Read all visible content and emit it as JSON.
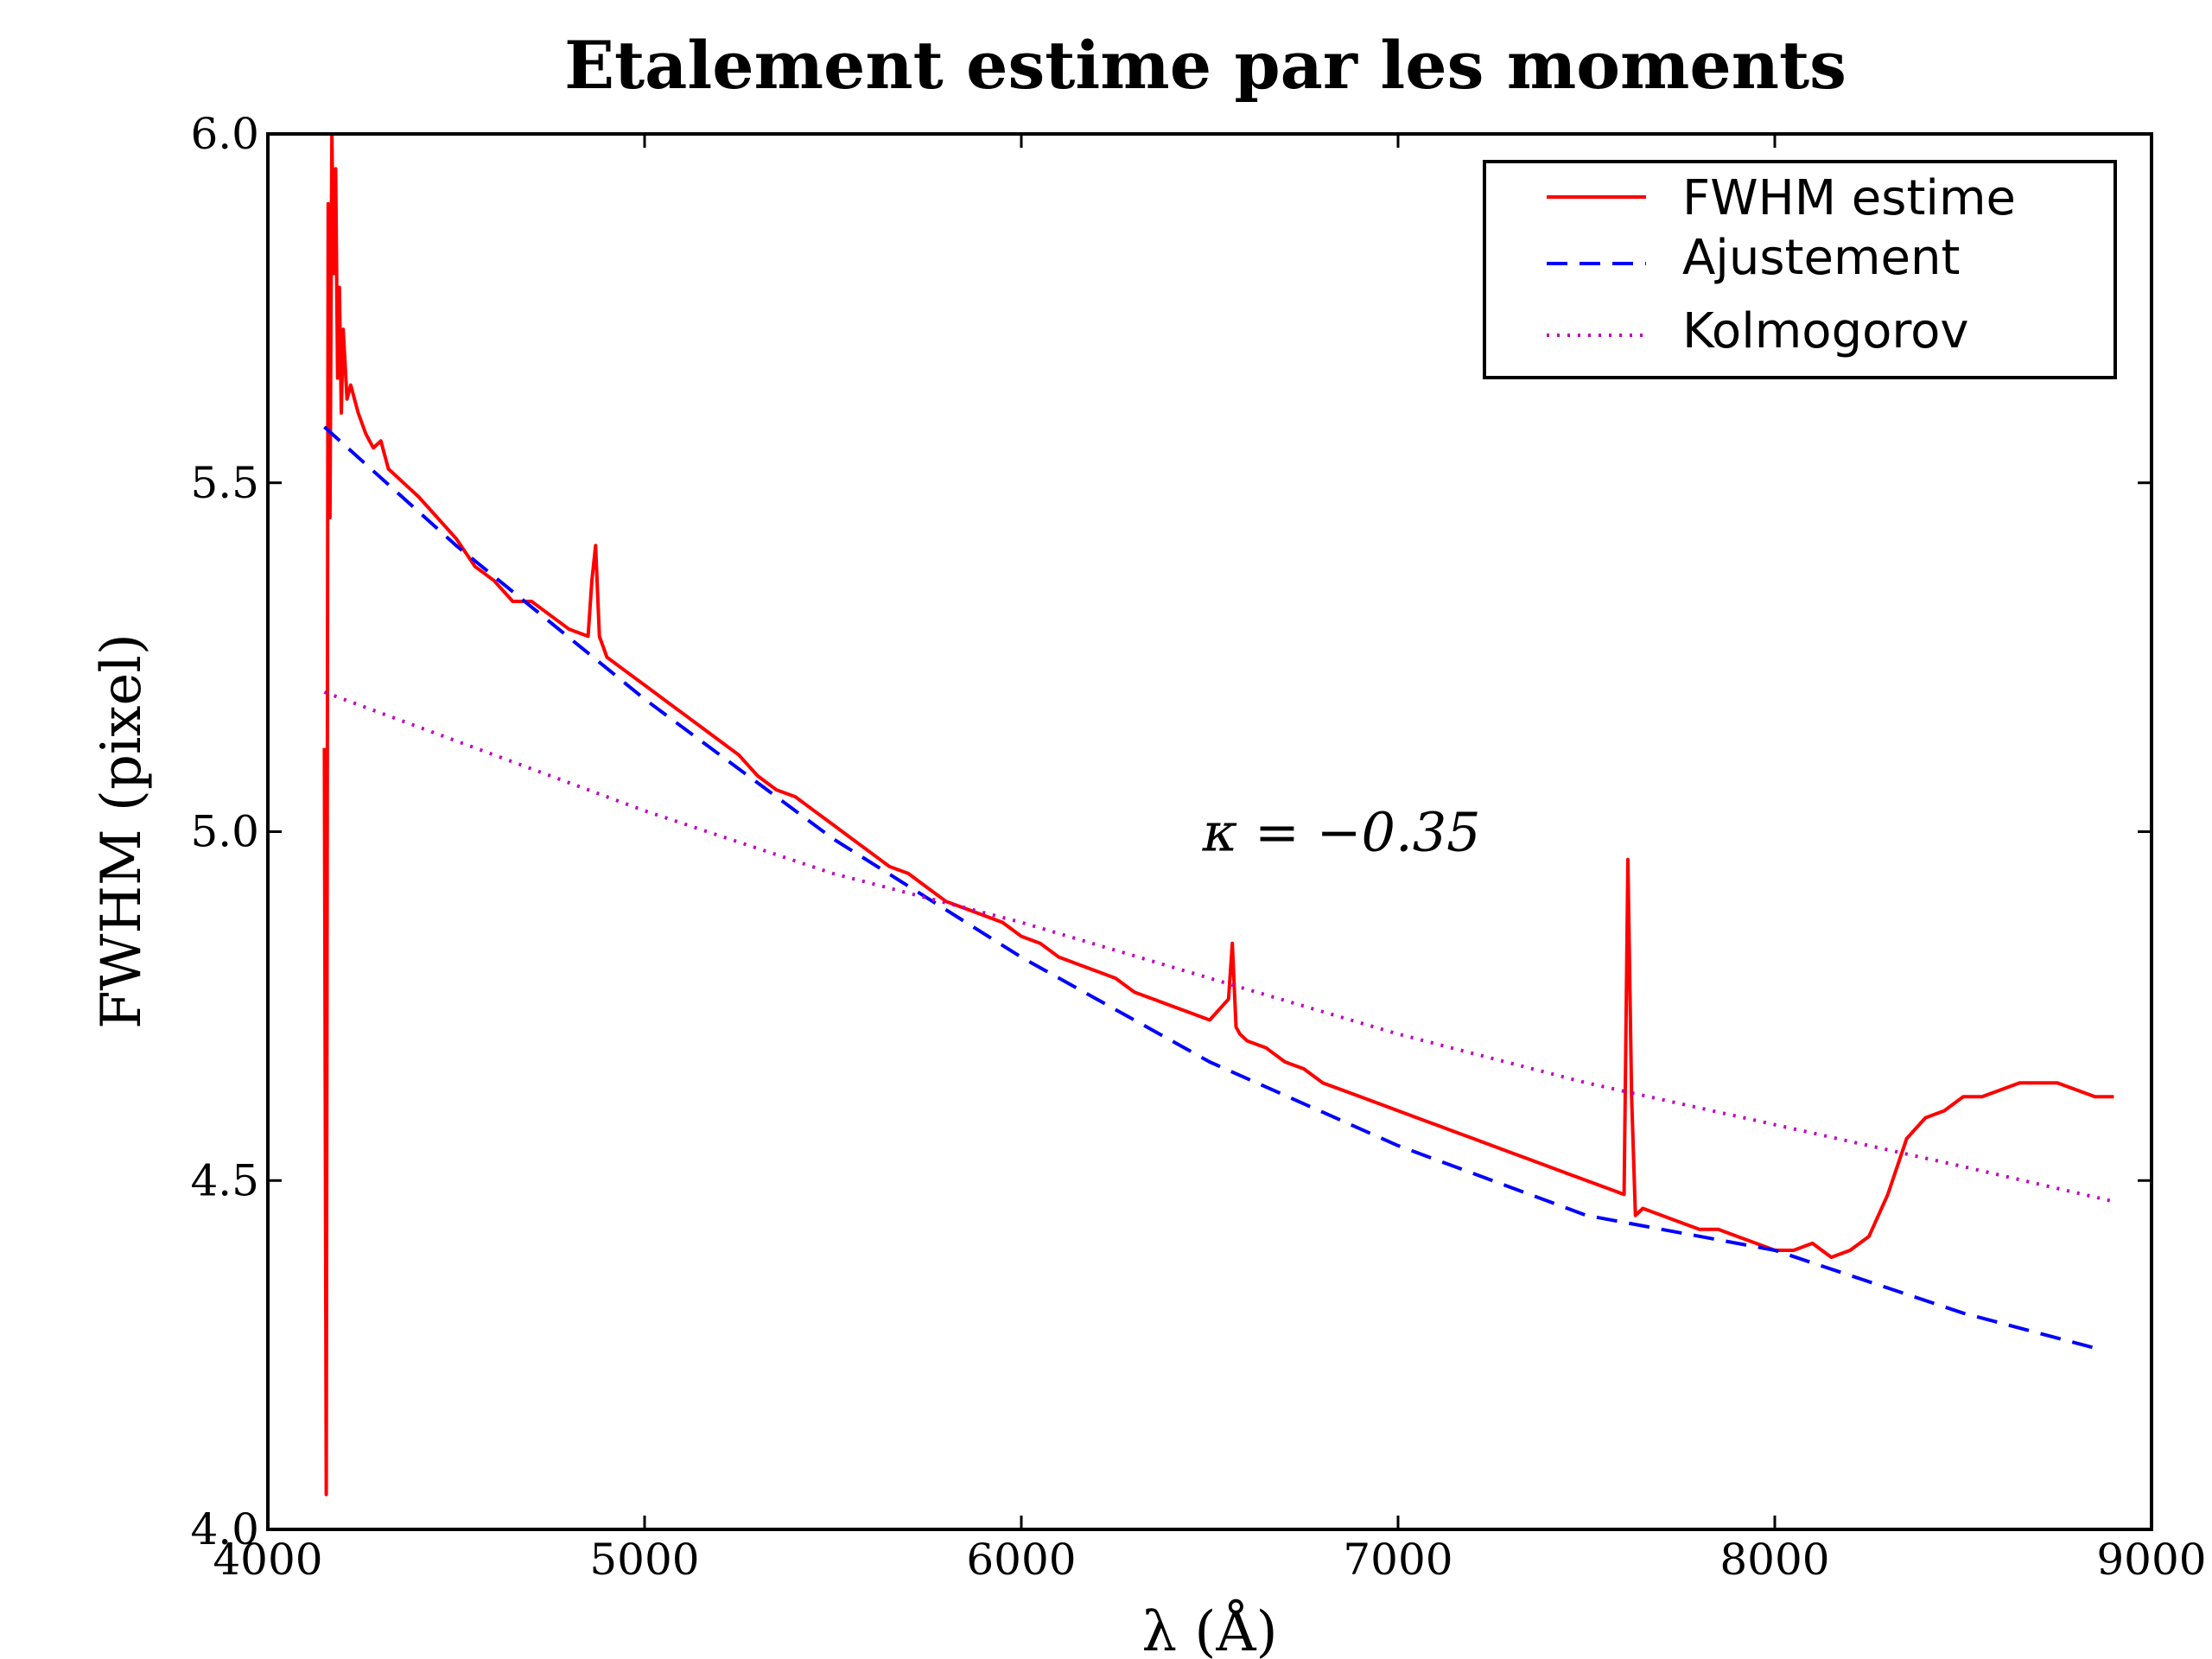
{
  "chart_data": {
    "type": "line",
    "title": "Etalement estime par les moments",
    "xlabel": "λ (Å)",
    "ylabel": "FWHM (pixel)",
    "xlim": [
      4000,
      9000
    ],
    "ylim": [
      4.0,
      6.0
    ],
    "xticks": [
      {
        "value": 4000,
        "label": "4000"
      },
      {
        "value": 5000,
        "label": "5000"
      },
      {
        "value": 6000,
        "label": "6000"
      },
      {
        "value": 7000,
        "label": "7000"
      },
      {
        "value": 8000,
        "label": "8000"
      },
      {
        "value": 9000,
        "label": "9000"
      }
    ],
    "yticks": [
      {
        "value": 4.0,
        "label": "4.0"
      },
      {
        "value": 4.5,
        "label": "4.5"
      },
      {
        "value": 5.0,
        "label": "5.0"
      },
      {
        "value": 5.5,
        "label": "5.5"
      },
      {
        "value": 6.0,
        "label": "6.0"
      }
    ],
    "grid": false,
    "legend_position": "top-right",
    "annotation": {
      "text": "κ = −0.35",
      "x": 6850,
      "y": 5.0
    },
    "series": [
      {
        "name": "FWHM estime",
        "style": "solid",
        "color": "#ff0000",
        "x": [
          4150,
          4155,
          4160,
          4165,
          4170,
          4175,
          4180,
          4185,
          4190,
          4195,
          4200,
          4210,
          4220,
          4240,
          4260,
          4280,
          4300,
          4320,
          4340,
          4360,
          4380,
          4400,
          4450,
          4500,
          4550,
          4600,
          4650,
          4700,
          4750,
          4800,
          4850,
          4860,
          4870,
          4880,
          4900,
          4950,
          5000,
          5050,
          5100,
          5150,
          5200,
          5250,
          5300,
          5350,
          5400,
          5450,
          5500,
          5550,
          5600,
          5650,
          5700,
          5750,
          5800,
          5850,
          5900,
          5950,
          6000,
          6050,
          6100,
          6150,
          6200,
          6250,
          6300,
          6350,
          6400,
          6450,
          6500,
          6550,
          6560,
          6570,
          6580,
          6600,
          6650,
          6700,
          6750,
          6800,
          6850,
          6900,
          6950,
          7000,
          7050,
          7100,
          7150,
          7200,
          7250,
          7300,
          7350,
          7400,
          7450,
          7500,
          7550,
          7600,
          7610,
          7620,
          7630,
          7650,
          7700,
          7750,
          7800,
          7850,
          7900,
          7950,
          8000,
          8050,
          8100,
          8150,
          8200,
          8250,
          8300,
          8350,
          8400,
          8450,
          8500,
          8550,
          8600,
          8650,
          8700,
          8750,
          8800,
          8850,
          8900
        ],
        "y": [
          5.12,
          4.05,
          5.9,
          5.45,
          6.0,
          5.8,
          5.95,
          5.65,
          5.78,
          5.6,
          5.72,
          5.62,
          5.64,
          5.6,
          5.57,
          5.55,
          5.56,
          5.52,
          5.51,
          5.5,
          5.49,
          5.48,
          5.45,
          5.42,
          5.38,
          5.36,
          5.33,
          5.33,
          5.31,
          5.29,
          5.28,
          5.36,
          5.41,
          5.28,
          5.25,
          5.23,
          5.21,
          5.19,
          5.17,
          5.15,
          5.13,
          5.11,
          5.08,
          5.06,
          5.05,
          5.03,
          5.01,
          4.99,
          4.97,
          4.95,
          4.94,
          4.92,
          4.9,
          4.89,
          4.88,
          4.87,
          4.85,
          4.84,
          4.82,
          4.81,
          4.8,
          4.79,
          4.77,
          4.76,
          4.75,
          4.74,
          4.73,
          4.76,
          4.84,
          4.72,
          4.71,
          4.7,
          4.69,
          4.67,
          4.66,
          4.64,
          4.63,
          4.62,
          4.61,
          4.6,
          4.59,
          4.58,
          4.57,
          4.56,
          4.55,
          4.54,
          4.53,
          4.52,
          4.51,
          4.5,
          4.49,
          4.48,
          4.96,
          4.62,
          4.45,
          4.46,
          4.45,
          4.44,
          4.43,
          4.43,
          4.42,
          4.41,
          4.4,
          4.4,
          4.41,
          4.39,
          4.4,
          4.42,
          4.48,
          4.56,
          4.59,
          4.6,
          4.62,
          4.62,
          4.63,
          4.64,
          4.64,
          4.64,
          4.63,
          4.62,
          4.62
        ]
      },
      {
        "name": "Ajustement",
        "style": "dashed",
        "color": "#0000ff",
        "x": [
          4150,
          4500,
          5000,
          5500,
          6000,
          6500,
          7000,
          7500,
          8000,
          8500,
          8850
        ],
        "y": [
          5.58,
          5.41,
          5.19,
          4.99,
          4.82,
          4.67,
          4.55,
          4.45,
          4.4,
          4.31,
          4.26
        ]
      },
      {
        "name": "Kolmogorov",
        "style": "dotted",
        "color": "#bf00bf",
        "x": [
          4150,
          4500,
          5000,
          5500,
          6000,
          6500,
          7000,
          7500,
          8000,
          8500,
          8900
        ],
        "y": [
          5.2,
          5.13,
          5.03,
          4.94,
          4.87,
          4.79,
          4.71,
          4.64,
          4.58,
          4.52,
          4.47
        ]
      }
    ]
  }
}
